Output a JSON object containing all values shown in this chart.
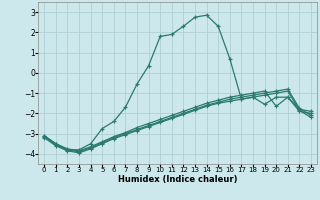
{
  "xlabel": "Humidex (Indice chaleur)",
  "bg_color": "#cde8ec",
  "grid_color": "#b0cfd4",
  "line_color": "#2a7a6e",
  "xlim": [
    -0.5,
    23.5
  ],
  "ylim": [
    -4.5,
    3.5
  ],
  "xticks": [
    0,
    1,
    2,
    3,
    4,
    5,
    6,
    7,
    8,
    9,
    10,
    11,
    12,
    13,
    14,
    15,
    16,
    17,
    18,
    19,
    20,
    21,
    22,
    23
  ],
  "yticks": [
    -4,
    -3,
    -2,
    -1,
    0,
    1,
    2,
    3
  ],
  "curve1_x": [
    0,
    1,
    2,
    3,
    4,
    5,
    6,
    7,
    8,
    9,
    10,
    11,
    12,
    13,
    14,
    15,
    16,
    17,
    18,
    19,
    20,
    21,
    22,
    23
  ],
  "curve1_y": [
    -3.1,
    -3.5,
    -3.8,
    -3.8,
    -3.5,
    -2.75,
    -2.4,
    -1.7,
    -0.55,
    0.35,
    1.8,
    1.9,
    2.3,
    2.75,
    2.85,
    2.3,
    0.7,
    -1.3,
    -1.2,
    -1.55,
    -1.2,
    -1.2,
    -1.8,
    -1.9
  ],
  "curve2_x": [
    0,
    1,
    2,
    3,
    4,
    5,
    6,
    7,
    8,
    9,
    10,
    11,
    12,
    13,
    14,
    15,
    16,
    17,
    18,
    19,
    20,
    21,
    22,
    23
  ],
  "curve2_y": [
    -3.1,
    -3.5,
    -3.75,
    -3.85,
    -3.65,
    -3.4,
    -3.15,
    -2.95,
    -2.7,
    -2.5,
    -2.3,
    -2.1,
    -1.9,
    -1.7,
    -1.5,
    -1.35,
    -1.2,
    -1.1,
    -1.0,
    -0.9,
    -1.65,
    -1.2,
    -1.9,
    -2.0
  ],
  "curve3_x": [
    0,
    1,
    2,
    3,
    4,
    5,
    6,
    7,
    8,
    9,
    10,
    11,
    12,
    13,
    14,
    15,
    16,
    17,
    18,
    19,
    20,
    21,
    22,
    23
  ],
  "curve3_y": [
    -3.15,
    -3.55,
    -3.8,
    -3.9,
    -3.7,
    -3.45,
    -3.2,
    -3.0,
    -2.8,
    -2.6,
    -2.4,
    -2.2,
    -2.0,
    -1.8,
    -1.6,
    -1.45,
    -1.3,
    -1.2,
    -1.1,
    -1.0,
    -0.9,
    -0.8,
    -1.75,
    -2.1
  ],
  "curve4_x": [
    0,
    1,
    2,
    3,
    4,
    5,
    6,
    7,
    8,
    9,
    10,
    11,
    12,
    13,
    14,
    15,
    16,
    17,
    18,
    19,
    20,
    21,
    22,
    23
  ],
  "curve4_y": [
    -3.2,
    -3.6,
    -3.85,
    -3.95,
    -3.75,
    -3.5,
    -3.25,
    -3.05,
    -2.85,
    -2.65,
    -2.45,
    -2.25,
    -2.05,
    -1.85,
    -1.65,
    -1.5,
    -1.4,
    -1.3,
    -1.2,
    -1.1,
    -1.0,
    -0.9,
    -1.85,
    -2.2
  ]
}
